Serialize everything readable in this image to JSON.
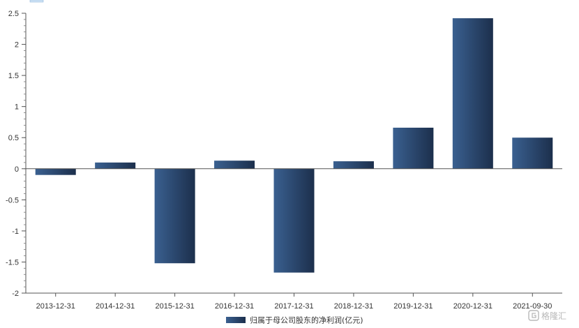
{
  "chart_data": {
    "type": "bar",
    "categories": [
      "2013-12-31",
      "2014-12-31",
      "2015-12-31",
      "2016-12-31",
      "2017-12-31",
      "2018-12-31",
      "2019-12-31",
      "2020-12-31",
      "2021-09-30"
    ],
    "series": [
      {
        "name": "归属于母公司股东的净利润(亿元)",
        "values": [
          -0.1,
          0.1,
          -1.52,
          0.13,
          -1.67,
          0.12,
          0.66,
          2.42,
          0.5
        ],
        "color_left": "#3a6090",
        "color_right": "#1c2f4c"
      }
    ],
    "ylim": [
      -2,
      2.5
    ],
    "yticks": [
      "2.5",
      "2",
      "1.5",
      "1",
      "0.5",
      "0",
      "-0.5",
      "-1",
      "-1.5",
      "-2"
    ],
    "ytick_values": [
      2.5,
      2,
      1.5,
      1,
      0.5,
      0,
      -0.5,
      -1,
      -1.5,
      -2
    ],
    "minor_ticks_per_major": 5,
    "grid": false,
    "legend_position": "bottom-center",
    "xlabel": "",
    "ylabel": "",
    "title": ""
  },
  "watermark": {
    "text": "格隆汇"
  }
}
